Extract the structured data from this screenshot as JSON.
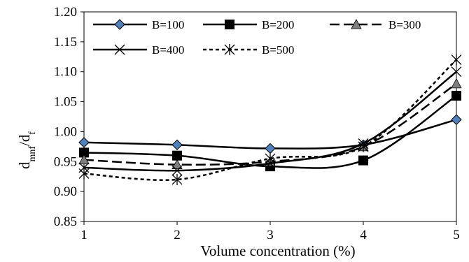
{
  "chart_data": {
    "type": "line",
    "title": "",
    "xlabel": "Volume concentration (%)",
    "ylabel": {
      "main": "d",
      "sub1": "mnf",
      "slash": "/d",
      "sub2": "f"
    },
    "x_ticks": [
      1,
      2,
      3,
      4,
      5
    ],
    "y_ticks": [
      "0.85",
      "0.90",
      "0.95",
      "1.00",
      "1.05",
      "1.10",
      "1.15",
      "1.20"
    ],
    "xlim": [
      1,
      5
    ],
    "ylim": [
      0.85,
      1.2
    ],
    "grid": false,
    "legend_position": "top-inside",
    "series": [
      {
        "name": "B=100",
        "marker": "diamond",
        "dash": "solid",
        "x": [
          1,
          2,
          3,
          4,
          5
        ],
        "y": [
          0.982,
          0.978,
          0.972,
          0.978,
          1.02
        ]
      },
      {
        "name": "B=200",
        "marker": "square",
        "dash": "solid",
        "x": [
          1,
          2,
          3,
          4,
          5
        ],
        "y": [
          0.965,
          0.96,
          0.942,
          0.952,
          1.06
        ]
      },
      {
        "name": "B=300",
        "marker": "triangle",
        "dash": "longdash",
        "x": [
          1,
          2,
          3,
          4,
          5
        ],
        "y": [
          0.953,
          0.945,
          0.95,
          0.975,
          1.08
        ]
      },
      {
        "name": "B=400",
        "marker": "x",
        "dash": "solid",
        "x": [
          1,
          2,
          3,
          4,
          5
        ],
        "y": [
          0.94,
          0.935,
          0.947,
          0.98,
          1.1
        ]
      },
      {
        "name": "B=500",
        "marker": "star",
        "dash": "shortdash",
        "x": [
          1,
          2,
          3,
          4,
          5
        ],
        "y": [
          0.93,
          0.92,
          0.955,
          0.975,
          1.12
        ]
      }
    ]
  }
}
